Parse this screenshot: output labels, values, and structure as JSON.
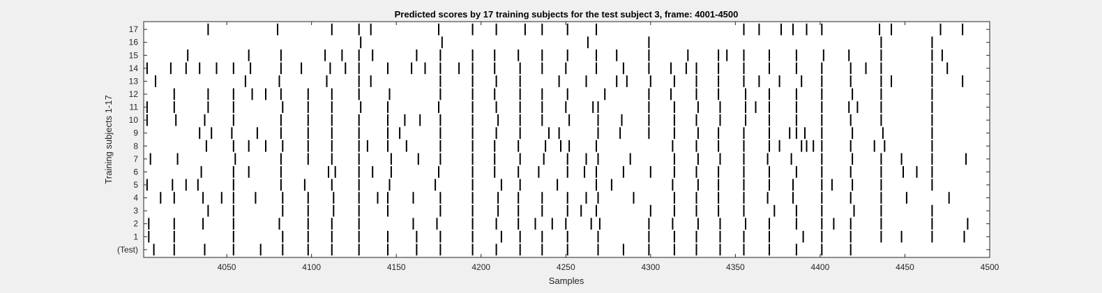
{
  "chart_data": {
    "type": "raster",
    "title": "Predicted scores by 17 training subjects for the test subject 3, frame: 4001-4500",
    "xlabel": "Samples",
    "ylabel": "Training subjects 1-17",
    "xlim": [
      4001,
      4500
    ],
    "xticks": [
      4050,
      4100,
      4150,
      4200,
      4250,
      4300,
      4350,
      4400,
      4450,
      4500
    ],
    "xtick_labels": [
      "4050",
      "4100",
      "4150",
      "4200",
      "4250",
      "4300",
      "4350",
      "4400",
      "4450",
      "4500"
    ],
    "ytick_labels": [
      "(Test)",
      "1",
      "2",
      "3",
      "4",
      "5",
      "6",
      "7",
      "8",
      "9",
      "10",
      "11",
      "12",
      "13",
      "14",
      "15",
      "16",
      "17"
    ],
    "mark_color": "#000000",
    "grid": false,
    "series": [
      {
        "name": "(Test)",
        "values": [
          4007,
          4019,
          4037,
          4054,
          4070,
          4083,
          4098,
          4112,
          4128,
          4145,
          4162,
          4176,
          4195,
          4209,
          4223,
          4236,
          4251,
          4269,
          4284,
          4299,
          4314,
          4327,
          4341,
          4355,
          4370,
          4386,
          4401,
          4418
        ]
      },
      {
        "name": "1",
        "values": [
          4004,
          4019,
          4054,
          4083,
          4098,
          4112,
          4128,
          4145,
          4162,
          4176,
          4195,
          4212,
          4223,
          4236,
          4251,
          4269,
          4299,
          4314,
          4327,
          4341,
          4355,
          4370,
          4390,
          4401,
          4418,
          4436,
          4448,
          4466,
          4485
        ]
      },
      {
        "name": "2",
        "values": [
          4004,
          4019,
          4036,
          4054,
          4081,
          4098,
          4112,
          4128,
          4160,
          4174,
          4195,
          4209,
          4222,
          4232,
          4242,
          4250,
          4265,
          4270,
          4299,
          4313,
          4328,
          4341,
          4356,
          4370,
          4386,
          4401,
          4408,
          4418,
          4436,
          4466,
          4487
        ]
      },
      {
        "name": "3",
        "values": [
          4039,
          4054,
          4083,
          4098,
          4113,
          4128,
          4145,
          4176,
          4195,
          4210,
          4222,
          4236,
          4251,
          4259,
          4268,
          4300,
          4314,
          4327,
          4340,
          4355,
          4373,
          4386,
          4401,
          4420,
          4436,
          4466
        ]
      },
      {
        "name": "4",
        "values": [
          4011,
          4019,
          4036,
          4047,
          4054,
          4067,
          4083,
          4098,
          4113,
          4128,
          4139,
          4145,
          4160,
          4176,
          4195,
          4210,
          4222,
          4236,
          4251,
          4262,
          4269,
          4290,
          4314,
          4327,
          4340,
          4355,
          4369,
          4384,
          4401,
          4418,
          4436,
          4451,
          4476
        ]
      },
      {
        "name": "5",
        "values": [
          4003,
          4018,
          4026,
          4033,
          4054,
          4082,
          4096,
          4112,
          4128,
          4146,
          4173,
          4195,
          4212,
          4223,
          4245,
          4268,
          4277,
          4313,
          4328,
          4340,
          4355,
          4370,
          4384,
          4401,
          4407,
          4419,
          4436,
          4466
        ]
      },
      {
        "name": "6",
        "values": [
          4035,
          4054,
          4063,
          4082,
          4110,
          4114,
          4128,
          4136,
          4147,
          4175,
          4195,
          4208,
          4222,
          4234,
          4251,
          4261,
          4268,
          4284,
          4300,
          4314,
          4327,
          4340,
          4355,
          4370,
          4386,
          4401,
          4418,
          4436,
          4449,
          4457,
          4466
        ]
      },
      {
        "name": "7",
        "values": [
          4005,
          4021,
          4055,
          4082,
          4098,
          4112,
          4128,
          4147,
          4163,
          4176,
          4195,
          4208,
          4223,
          4237,
          4251,
          4262,
          4269,
          4288,
          4314,
          4328,
          4341,
          4355,
          4369,
          4383,
          4401,
          4419,
          4436,
          4448,
          4466,
          4486
        ]
      },
      {
        "name": "8",
        "values": [
          4038,
          4054,
          4063,
          4073,
          4083,
          4098,
          4112,
          4128,
          4133,
          4145,
          4156,
          4176,
          4195,
          4208,
          4222,
          4238,
          4247,
          4252,
          4268,
          4313,
          4327,
          4340,
          4355,
          4370,
          4376,
          4389,
          4392,
          4396,
          4401,
          4418,
          4432,
          4438,
          4466
        ]
      },
      {
        "name": "9",
        "values": [
          4034,
          4041,
          4053,
          4068,
          4082,
          4098,
          4112,
          4128,
          4145,
          4152,
          4176,
          4195,
          4209,
          4223,
          4240,
          4246,
          4269,
          4282,
          4299,
          4314,
          4328,
          4340,
          4355,
          4370,
          4382,
          4386,
          4391,
          4401,
          4419,
          4437,
          4466
        ]
      },
      {
        "name": "10",
        "values": [
          4003,
          4020,
          4037,
          4054,
          4082,
          4098,
          4112,
          4128,
          4145,
          4155,
          4164,
          4176,
          4195,
          4210,
          4223,
          4236,
          4252,
          4269,
          4283,
          4299,
          4314,
          4327,
          4341,
          4356,
          4370,
          4386,
          4401,
          4418,
          4436,
          4466
        ]
      },
      {
        "name": "11",
        "values": [
          4003,
          4019,
          4039,
          4054,
          4083,
          4098,
          4112,
          4129,
          4145,
          4175,
          4195,
          4209,
          4223,
          4236,
          4250,
          4266,
          4269,
          4299,
          4314,
          4328,
          4341,
          4356,
          4362,
          4370,
          4386,
          4401,
          4417,
          4422,
          4436,
          4466
        ]
      },
      {
        "name": "12",
        "values": [
          4019,
          4039,
          4054,
          4065,
          4073,
          4082,
          4098,
          4112,
          4128,
          4146,
          4176,
          4195,
          4208,
          4223,
          4236,
          4251,
          4273,
          4299,
          4312,
          4327,
          4340,
          4356,
          4370,
          4386,
          4401,
          4419,
          4436,
          4466
        ]
      },
      {
        "name": "13",
        "values": [
          4008,
          4061,
          4081,
          4109,
          4128,
          4135,
          4176,
          4195,
          4209,
          4223,
          4246,
          4262,
          4280,
          4286,
          4300,
          4314,
          4327,
          4340,
          4355,
          4364,
          4376,
          4389,
          4401,
          4418,
          4436,
          4442,
          4466,
          4484
        ]
      },
      {
        "name": "14",
        "values": [
          4003,
          4017,
          4026,
          4034,
          4044,
          4054,
          4064,
          4082,
          4094,
          4111,
          4120,
          4128,
          4145,
          4159,
          4167,
          4176,
          4187,
          4195,
          4208,
          4223,
          4236,
          4250,
          4268,
          4284,
          4299,
          4312,
          4321,
          4327,
          4340,
          4355,
          4370,
          4386,
          4401,
          4418,
          4427,
          4436,
          4466,
          4475
        ]
      },
      {
        "name": "15",
        "values": [
          4027,
          4063,
          4082,
          4108,
          4118,
          4128,
          4136,
          4162,
          4176,
          4195,
          4208,
          4222,
          4236,
          4251,
          4268,
          4280,
          4299,
          4322,
          4340,
          4345,
          4355,
          4370,
          4386,
          4402,
          4417,
          4436,
          4466,
          4472
        ]
      },
      {
        "name": "16",
        "values": [
          4129,
          4177,
          4263,
          4299,
          4436,
          4466
        ]
      },
      {
        "name": "17",
        "values": [
          4039,
          4080,
          4112,
          4128,
          4135,
          4175,
          4195,
          4209,
          4226,
          4236,
          4251,
          4268,
          4355,
          4364,
          4377,
          4384,
          4392,
          4401,
          4435,
          4442,
          4471,
          4484
        ]
      }
    ]
  }
}
